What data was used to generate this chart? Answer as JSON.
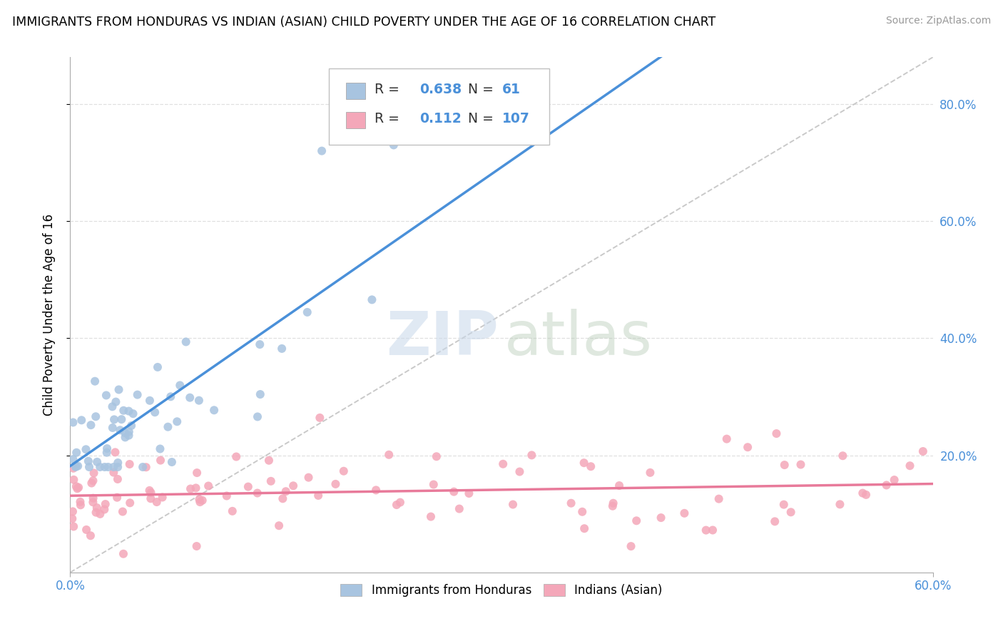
{
  "title": "IMMIGRANTS FROM HONDURAS VS INDIAN (ASIAN) CHILD POVERTY UNDER THE AGE OF 16 CORRELATION CHART",
  "source": "Source: ZipAtlas.com",
  "ylabel": "Child Poverty Under the Age of 16",
  "xlim": [
    0.0,
    0.6
  ],
  "ylim": [
    0.0,
    0.88
  ],
  "r_honduras": 0.638,
  "n_honduras": 61,
  "r_indian": 0.112,
  "n_indian": 107,
  "color_honduras": "#a8c4e0",
  "color_indian": "#f4a7b9",
  "trendline_honduras_color": "#4a90d9",
  "trendline_indian_color": "#e87a9a",
  "trendline_dashed_color": "#c0c0c0",
  "legend_label_1": "Immigrants from Honduras",
  "legend_label_2": "Indians (Asian)",
  "legend_r1": "0.638",
  "legend_n1": "61",
  "legend_r2": "0.112",
  "legend_n2": "107",
  "color_r_n": "#4a90d9",
  "xtick_left": "0.0%",
  "xtick_right": "60.0%",
  "ytick_labels": [
    "20.0%",
    "40.0%",
    "60.0%",
    "80.0%"
  ],
  "ytick_vals": [
    0.2,
    0.4,
    0.6,
    0.8
  ],
  "grid_color": "#e0e0e0",
  "watermark_zip_color": "#c8d8ea",
  "watermark_atlas_color": "#b8ccb8"
}
